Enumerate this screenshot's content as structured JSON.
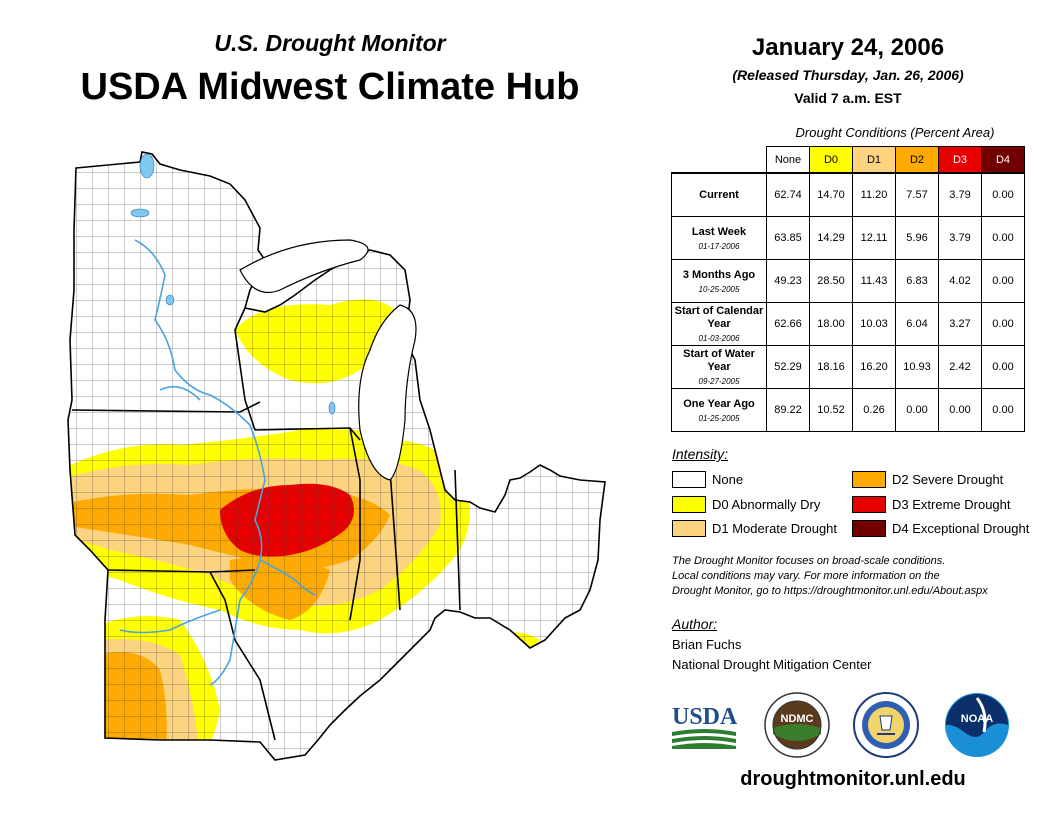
{
  "header": {
    "subtitle": "U.S. Drought Monitor",
    "title": "USDA Midwest Climate Hub",
    "date": "January 24, 2006",
    "released": "(Released Thursday, Jan. 26, 2006)",
    "valid": "Valid 7 a.m. EST"
  },
  "colors": {
    "none": "#ffffff",
    "d0": "#ffff00",
    "d1": "#fcd37f",
    "d2": "#ffaa00",
    "d3": "#e60000",
    "d4": "#730000",
    "water": "#7fc8f0",
    "river": "#4aa3df"
  },
  "table": {
    "caption": "Drought Conditions (Percent Area)",
    "columns": [
      "None",
      "D0",
      "D1",
      "D2",
      "D3",
      "D4"
    ],
    "rows": [
      {
        "main": "Current",
        "sub": "",
        "values": [
          "62.74",
          "14.70",
          "11.20",
          "7.57",
          "3.79",
          "0.00"
        ]
      },
      {
        "main": "Last Week",
        "sub": "01-17-2006",
        "values": [
          "63.85",
          "14.29",
          "12.11",
          "5.96",
          "3.79",
          "0.00"
        ]
      },
      {
        "main": "3 Months Ago",
        "sub": "10-25-2005",
        "values": [
          "49.23",
          "28.50",
          "11.43",
          "6.83",
          "4.02",
          "0.00"
        ]
      },
      {
        "main": "Start of Calendar Year",
        "sub": "01-03-2006",
        "values": [
          "62.66",
          "18.00",
          "10.03",
          "6.04",
          "3.27",
          "0.00"
        ]
      },
      {
        "main": "Start of Water Year",
        "sub": "09-27-2005",
        "values": [
          "52.29",
          "18.16",
          "16.20",
          "10.93",
          "2.42",
          "0.00"
        ]
      },
      {
        "main": "One Year Ago",
        "sub": "01-25-2005",
        "values": [
          "89.22",
          "10.52",
          "0.26",
          "0.00",
          "0.00",
          "0.00"
        ]
      }
    ]
  },
  "legend": {
    "heading": "Intensity:",
    "items": [
      {
        "label": "None",
        "color": "#ffffff"
      },
      {
        "label": "D0 Abnormally Dry",
        "color": "#ffff00"
      },
      {
        "label": "D1 Moderate Drought",
        "color": "#fcd37f"
      },
      {
        "label": "D2 Severe Drought",
        "color": "#ffaa00"
      },
      {
        "label": "D3 Extreme Drought",
        "color": "#e60000"
      },
      {
        "label": "D4 Exceptional Drought",
        "color": "#730000"
      }
    ]
  },
  "note": {
    "line1": "The Drought Monitor focuses on broad-scale conditions.",
    "line2": "Local conditions may vary. For more information on the",
    "line3": "Drought Monitor, go to https://droughtmonitor.unl.edu/About.aspx"
  },
  "author": {
    "heading": "Author:",
    "name": "Brian Fuchs",
    "org": "National Drought Mitigation Center"
  },
  "logos": {
    "usda": "USDA",
    "ndmc": "NDMC",
    "noaa": "NOAA"
  },
  "footer": {
    "url": "droughtmonitor.unl.edu"
  }
}
